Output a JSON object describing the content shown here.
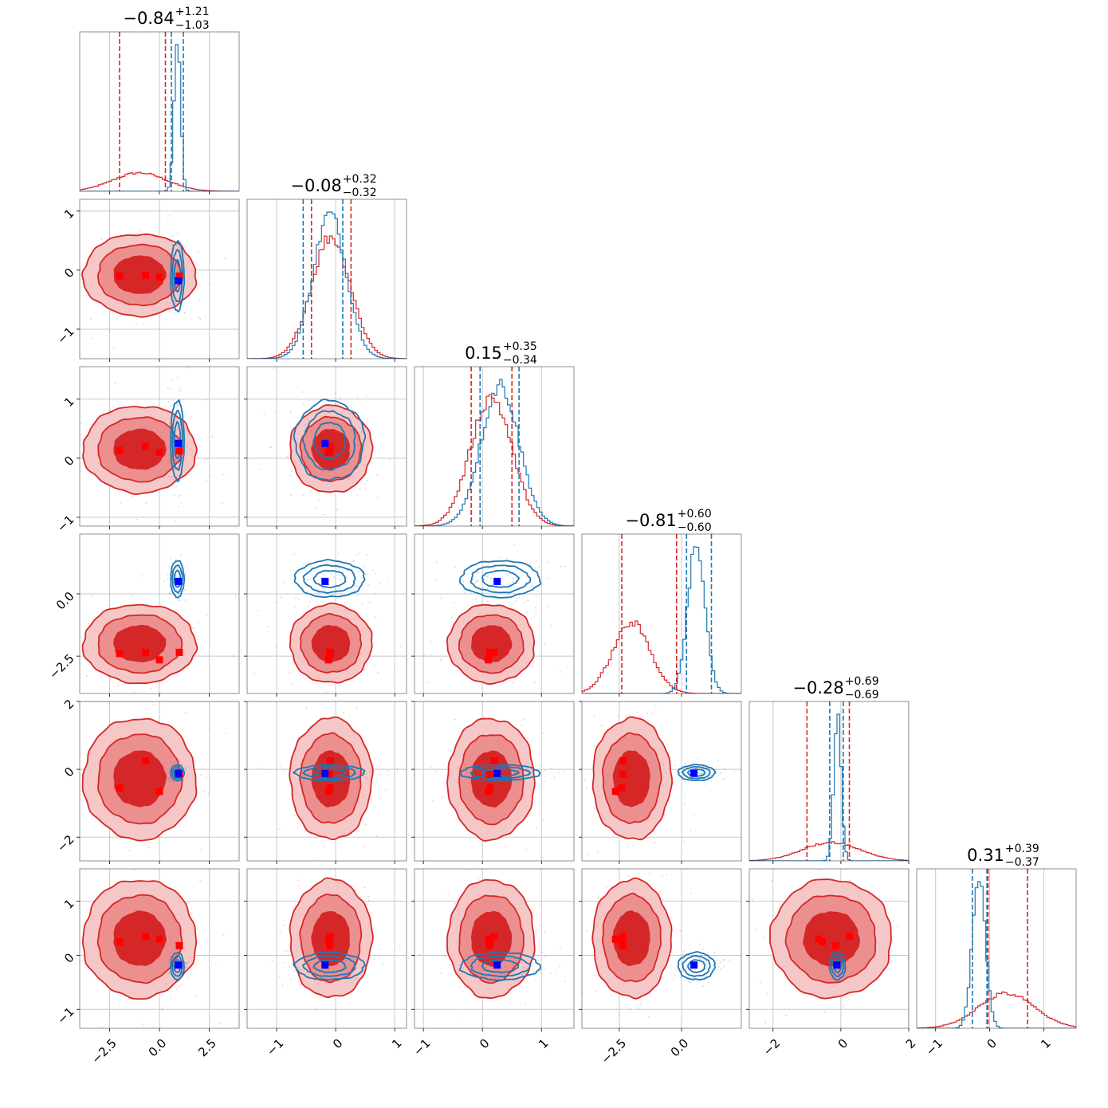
{
  "colors": {
    "red": "#d62728",
    "red_fill_outer": "#f6c7c7",
    "red_fill_mid": "#ec8f8f",
    "red_fill_inner": "#d62728",
    "blue": "#1f77b4",
    "marker_red": "#ff0000",
    "marker_blue": "#0000ff",
    "grid": "#c8c8c8"
  },
  "titles": [
    {
      "value": "−0.84",
      "plus": "+1.21",
      "minus": "−1.03"
    },
    {
      "value": "−0.08",
      "plus": "+0.32",
      "minus": "−0.32"
    },
    {
      "value": "0.15",
      "plus": "+0.35",
      "minus": "−0.34"
    },
    {
      "value": "−0.81",
      "plus": "+0.60",
      "minus": "−0.60"
    },
    {
      "value": "−0.28",
      "plus": "+0.69",
      "minus": "−0.69"
    },
    {
      "value": "0.31",
      "plus": "+0.39",
      "minus": "−0.37"
    }
  ],
  "chart_data": {
    "type": "corner",
    "grid": true,
    "parameters": [
      {
        "range": [
          -4.0,
          4.0
        ],
        "ticks": [
          -2.5,
          0.0,
          2.5
        ],
        "tick_labels": [
          "−2.5",
          "0.0",
          "2.5"
        ]
      },
      {
        "range": [
          -1.5,
          1.2
        ],
        "ticks": [
          -1,
          0,
          1
        ],
        "tick_labels": [
          "−1",
          "0",
          "1"
        ]
      },
      {
        "range": [
          -1.15,
          1.55
        ],
        "ticks": [
          -1,
          0,
          1
        ],
        "tick_labels": [
          "−1",
          "0",
          "1"
        ]
      },
      {
        "range": [
          -4.0,
          2.4
        ],
        "ticks": [
          -2.5,
          0.0
        ],
        "tick_labels": [
          "−2.5",
          "0.0"
        ]
      },
      {
        "range": [
          -2.7,
          2.0
        ],
        "ticks": [
          -2,
          0,
          2
        ],
        "tick_labels": [
          "−2",
          "0",
          "2"
        ]
      },
      {
        "range": [
          -1.35,
          1.6
        ],
        "ticks": [
          -1,
          0,
          1
        ],
        "tick_labels": [
          "−1",
          "0",
          "1"
        ]
      }
    ],
    "series": [
      {
        "color": "#d62728",
        "means": [
          -1.0,
          -0.08,
          0.15,
          -2.0,
          -0.28,
          0.31
        ],
        "stds": [
          1.35,
          0.33,
          0.35,
          0.75,
          0.85,
          0.52
        ],
        "quantiles": [
          [
            -2.0,
            0.3
          ],
          [
            -0.41,
            0.26
          ],
          [
            -0.19,
            0.5
          ],
          [
            -2.4,
            -0.2
          ],
          [
            -1.0,
            0.25
          ],
          [
            -0.03,
            0.7
          ]
        ],
        "markers": [
          [
            -2.0,
            -0.1,
            0.13,
            -2.4,
            -0.55,
            0.25
          ],
          [
            -0.7,
            -0.09,
            0.2,
            -2.35,
            0.25,
            0.35
          ],
          [
            0.0,
            -0.12,
            0.1,
            -2.65,
            -0.65,
            0.3
          ],
          [
            1.0,
            -0.1,
            0.12,
            -2.35,
            -0.15,
            0.18
          ]
        ]
      },
      {
        "color": "#1f77b4",
        "means": [
          0.9,
          -0.1,
          0.3,
          0.6,
          -0.1,
          -0.2
        ],
        "stds": [
          0.16,
          0.28,
          0.32,
          0.35,
          0.11,
          0.12
        ],
        "quantiles": [
          [
            0.6,
            1.2
          ],
          [
            -0.55,
            0.12
          ],
          [
            -0.04,
            0.62
          ],
          [
            0.2,
            1.2
          ],
          [
            -0.33,
            0.07
          ],
          [
            -0.32,
            -0.05
          ]
        ],
        "markers": [
          [
            0.95,
            -0.18,
            0.25,
            0.5,
            -0.12,
            -0.18
          ]
        ]
      }
    ]
  }
}
